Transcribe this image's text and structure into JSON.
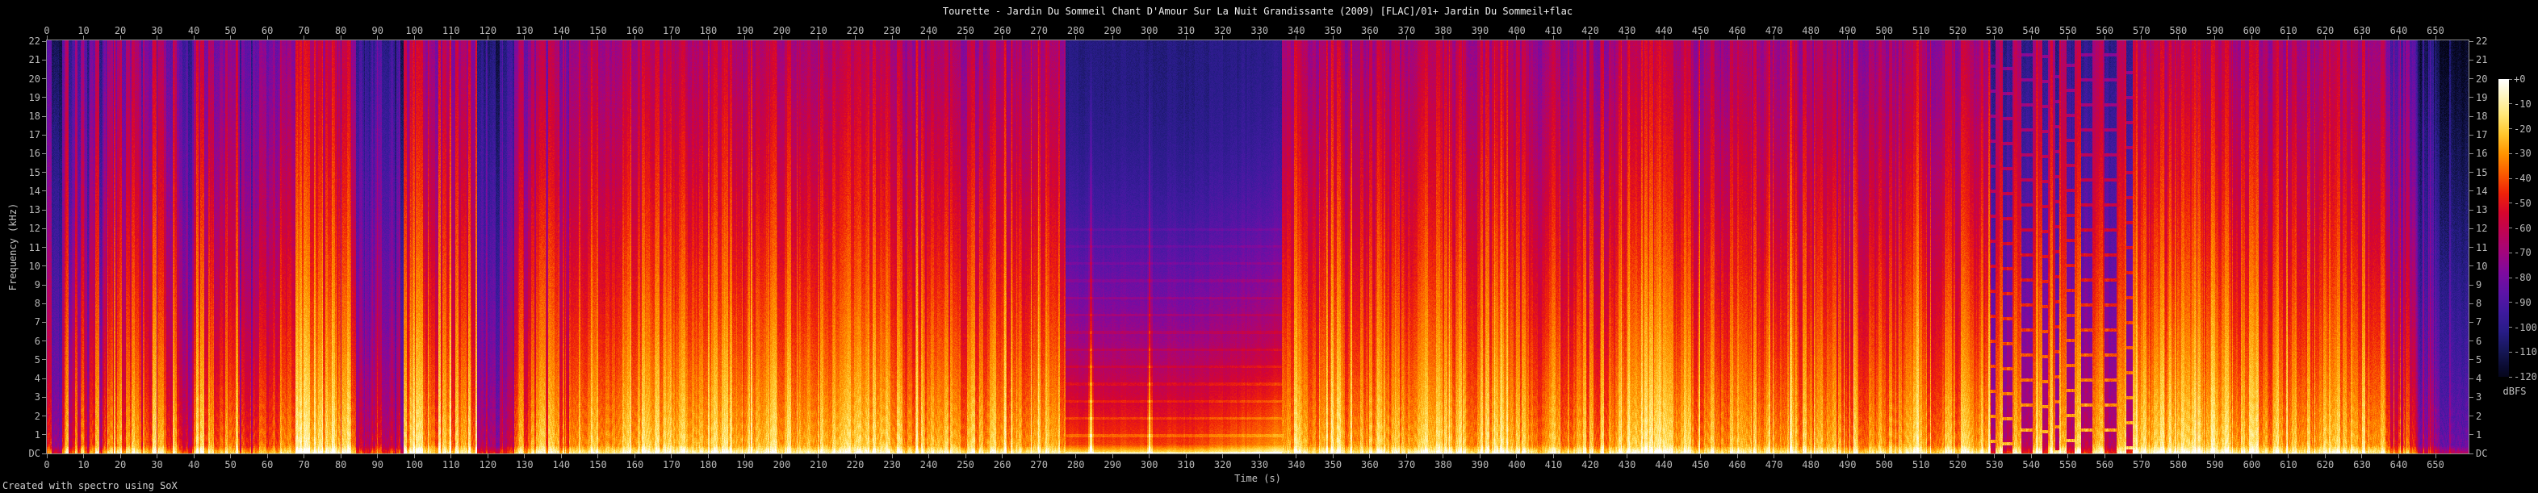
{
  "title": "Tourette - Jardin Du Sommeil Chant D'Amour Sur La Nuit Grandissante (2009) [FLAC]/01+ Jardin Du Sommeil+flac",
  "credit": "Created with spectro using SoX",
  "x_axis": {
    "label": "Time (s)",
    "ticks": [
      0,
      10,
      20,
      30,
      40,
      50,
      60,
      70,
      80,
      90,
      100,
      110,
      120,
      130,
      140,
      150,
      160,
      170,
      180,
      190,
      200,
      210,
      220,
      230,
      240,
      250,
      260,
      270,
      280,
      290,
      300,
      310,
      320,
      330,
      340,
      350,
      360,
      370,
      380,
      390,
      400,
      410,
      420,
      430,
      440,
      450,
      460,
      470,
      480,
      490,
      500,
      510,
      520,
      530,
      540,
      550,
      560,
      570,
      580,
      590,
      600,
      610,
      620,
      630,
      640,
      650
    ]
  },
  "y_axis": {
    "label": "Frequency (kHz)",
    "ticks": [
      "22",
      "21",
      "20",
      "19",
      "18",
      "17",
      "16",
      "15",
      "14",
      "13",
      "12",
      "11",
      "10",
      "9",
      "8",
      "7",
      "6",
      "5",
      "4",
      "3",
      "2",
      "1",
      "DC"
    ]
  },
  "colorbar": {
    "label": "dBFS",
    "ticks": [
      "+0",
      "-10",
      "-20",
      "-30",
      "-40",
      "-50",
      "-60",
      "-70",
      "-80",
      "-90",
      "-100",
      "-110",
      "-120"
    ]
  },
  "chart_data": {
    "type": "heatmap",
    "subtype": "audio-spectrogram",
    "time_range_s": [
      0,
      659
    ],
    "freq_range_khz": [
      0,
      22.05
    ],
    "level_range_dbfs": [
      -120,
      0
    ],
    "grid": false,
    "palette": [
      {
        "dbfs": 0,
        "color": "#ffffff"
      },
      {
        "dbfs": -6,
        "color": "#fdf6c8"
      },
      {
        "dbfs": -14,
        "color": "#ffe87a"
      },
      {
        "dbfs": -22,
        "color": "#ffc72e"
      },
      {
        "dbfs": -30,
        "color": "#ff9400"
      },
      {
        "dbfs": -38,
        "color": "#fb5c00"
      },
      {
        "dbfs": -46,
        "color": "#ef2209"
      },
      {
        "dbfs": -54,
        "color": "#d6052e"
      },
      {
        "dbfs": -62,
        "color": "#bd0456"
      },
      {
        "dbfs": -70,
        "color": "#a2057e"
      },
      {
        "dbfs": -78,
        "color": "#7e0a9e"
      },
      {
        "dbfs": -86,
        "color": "#5d13a6"
      },
      {
        "dbfs": -94,
        "color": "#3e1a9e"
      },
      {
        "dbfs": -102,
        "color": "#271c86"
      },
      {
        "dbfs": -110,
        "color": "#151655"
      },
      {
        "dbfs": -118,
        "color": "#070826"
      },
      {
        "dbfs": -126,
        "color": "#000000"
      }
    ],
    "segments": [
      {
        "t0": 0,
        "t1": 1.2,
        "level": 0.5,
        "contrast": 0.1,
        "texture": "stripes"
      },
      {
        "t0": 1.2,
        "t1": 4,
        "level": 0.2,
        "contrast": 0.08,
        "texture": "stripes"
      },
      {
        "t0": 4,
        "t1": 15,
        "level": 0.58,
        "contrast": 0.3,
        "texture": "stripes"
      },
      {
        "t0": 15,
        "t1": 36,
        "level": 0.7,
        "contrast": 0.26,
        "texture": "stripes"
      },
      {
        "t0": 36,
        "t1": 40.5,
        "level": 0.45,
        "contrast": 0.26,
        "texture": "stripes"
      },
      {
        "t0": 40.5,
        "t1": 52,
        "level": 0.74,
        "contrast": 0.22,
        "texture": "stripes"
      },
      {
        "t0": 52,
        "t1": 56,
        "level": 0.45,
        "contrast": 0.22,
        "texture": "stripes"
      },
      {
        "t0": 56,
        "t1": 67.5,
        "level": 0.72,
        "contrast": 0.22,
        "texture": "stripes"
      },
      {
        "t0": 67.5,
        "t1": 79,
        "level": 0.88,
        "contrast": 0.18,
        "texture": "stripes"
      },
      {
        "t0": 79,
        "t1": 84,
        "level": 0.7,
        "contrast": 0.2,
        "texture": "stripes"
      },
      {
        "t0": 84,
        "t1": 97,
        "level": 0.36,
        "contrast": 0.18,
        "texture": "stripes"
      },
      {
        "t0": 97,
        "t1": 117,
        "level": 0.85,
        "contrast": 0.2,
        "texture": "stripes"
      },
      {
        "t0": 117,
        "t1": 127,
        "level": 0.38,
        "contrast": 0.18,
        "texture": "stripes"
      },
      {
        "t0": 127,
        "t1": 142,
        "level": 0.72,
        "contrast": 0.2,
        "texture": "stripes"
      },
      {
        "t0": 142,
        "t1": 232,
        "level": 0.84,
        "contrast": 0.13,
        "texture": "stripes"
      },
      {
        "t0": 232,
        "t1": 277,
        "level": 0.78,
        "contrast": 0.15,
        "texture": "stripes"
      },
      {
        "t0": 277,
        "t1": 336,
        "level": 0.1,
        "contrast": 0.05,
        "texture": "pad",
        "tones_s": [
          284,
          300
        ]
      },
      {
        "t0": 336,
        "t1": 352,
        "level": 0.82,
        "contrast": 0.16,
        "texture": "stripes"
      },
      {
        "t0": 352,
        "t1": 430,
        "level": 0.78,
        "contrast": 0.16,
        "texture": "stripes"
      },
      {
        "t0": 430,
        "t1": 446,
        "level": 0.88,
        "contrast": 0.13,
        "texture": "stripes"
      },
      {
        "t0": 446,
        "t1": 525,
        "level": 0.8,
        "contrast": 0.15,
        "texture": "stripes"
      },
      {
        "t0": 525,
        "t1": 570,
        "level": 0.85,
        "contrast": 0.12,
        "texture": "gaps",
        "gap_columns_s": [
          [
            529.5,
            1.2
          ],
          [
            533.5,
            2.6
          ],
          [
            538.8,
            3.0
          ],
          [
            543.6,
            1.6
          ],
          [
            547,
            1.0
          ],
          [
            550.6,
            2.0
          ],
          [
            555,
            3.0
          ],
          [
            561.5,
            3.4
          ],
          [
            566.6,
            1.6
          ]
        ]
      },
      {
        "t0": 570,
        "t1": 636,
        "level": 0.82,
        "contrast": 0.15,
        "texture": "stripes"
      },
      {
        "t0": 636,
        "t1": 645,
        "level": 0.55,
        "contrast": 0.2,
        "texture": "stripes"
      },
      {
        "t0": 645,
        "t1": 651,
        "level": 0.22,
        "contrast": 0.15,
        "texture": "stripes"
      },
      {
        "t0": 651,
        "t1": 659,
        "level": 0.05,
        "contrast": 0.03,
        "texture": "stripes"
      }
    ]
  }
}
